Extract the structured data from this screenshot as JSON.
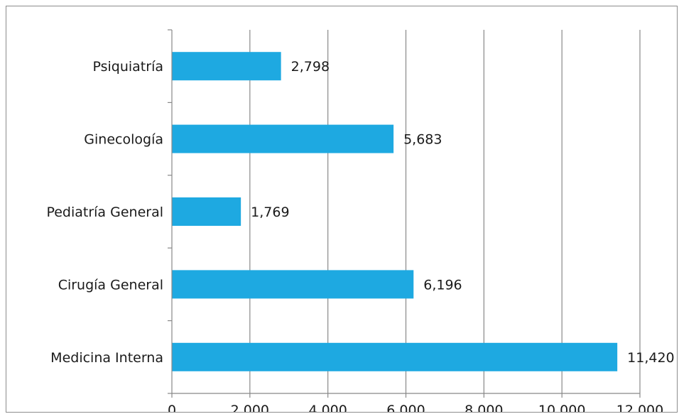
{
  "chart_data": {
    "type": "bar",
    "orientation": "horizontal",
    "categories": [
      "Psiquiatría",
      "Ginecología",
      "Pediatría General",
      "Cirugía General",
      "Medicina Interna"
    ],
    "values": [
      2798,
      5683,
      1769,
      6196,
      11420
    ],
    "value_labels": [
      "2,798",
      "5,683",
      "1,769",
      "6,196",
      "11,420"
    ],
    "x_ticks": [
      "0",
      "2,000",
      "4,000",
      "6,000",
      "8,000",
      "10,000",
      "12,000"
    ],
    "xlim": [
      0,
      12000
    ],
    "grid": "vertical",
    "legend": "none",
    "title": "",
    "xlabel": "",
    "ylabel": ""
  },
  "colors": {
    "bar": "#1ea9e1",
    "grid": "#888888",
    "axis": "#888888"
  }
}
